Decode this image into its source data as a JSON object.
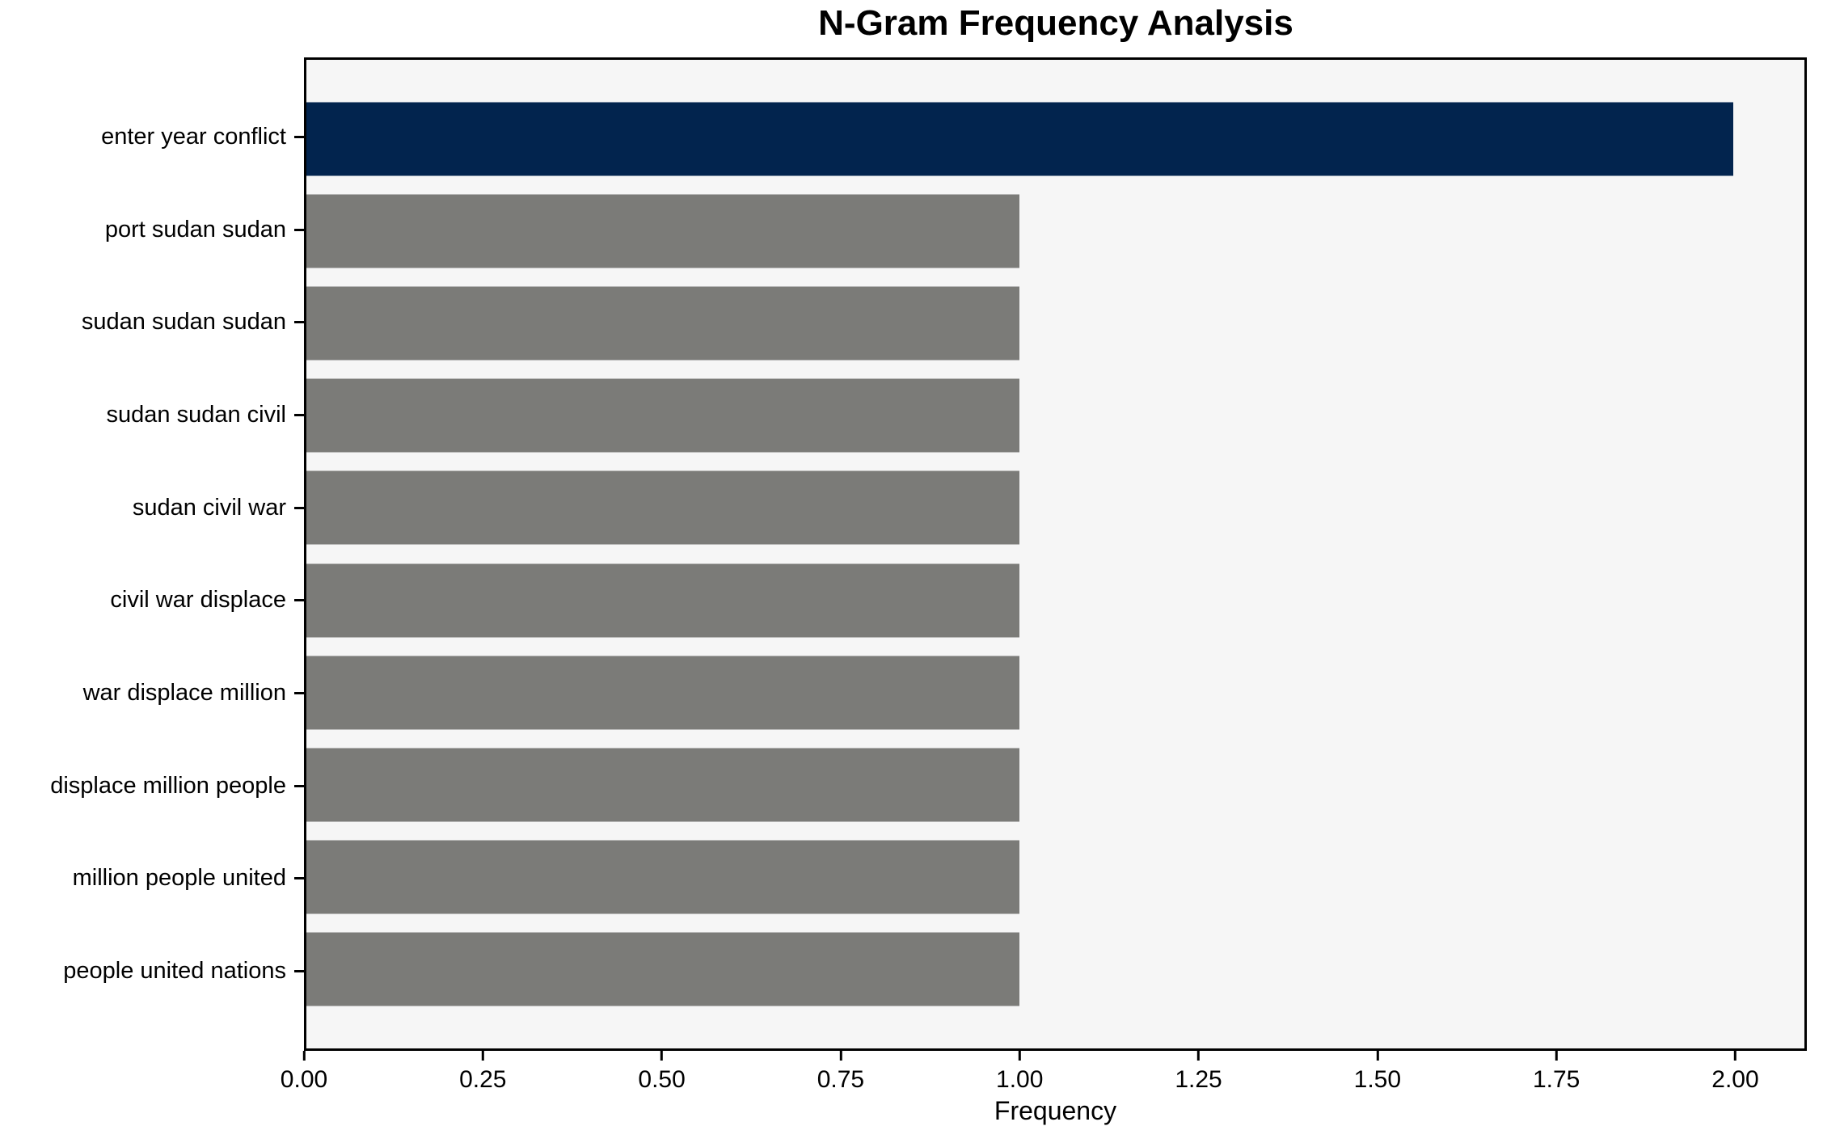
{
  "chart_data": {
    "type": "bar",
    "orientation": "horizontal",
    "title": "N-Gram Frequency Analysis",
    "xlabel": "Frequency",
    "ylabel": "",
    "categories": [
      "enter year conflict",
      "port sudan sudan",
      "sudan sudan sudan",
      "sudan sudan civil",
      "sudan civil war",
      "civil war displace",
      "war displace million",
      "displace million people",
      "million people united",
      "people united nations"
    ],
    "values": [
      2,
      1,
      1,
      1,
      1,
      1,
      1,
      1,
      1,
      1
    ],
    "bar_colors": [
      "#02244e",
      "#7b7b78",
      "#7b7b78",
      "#7b7b78",
      "#7b7b78",
      "#7b7b78",
      "#7b7b78",
      "#7b7b78",
      "#7b7b78",
      "#7b7b78"
    ],
    "xlim": [
      0,
      2.1
    ],
    "xticks": [
      {
        "value": 0.0,
        "label": "0.00"
      },
      {
        "value": 0.25,
        "label": "0.25"
      },
      {
        "value": 0.5,
        "label": "0.50"
      },
      {
        "value": 0.75,
        "label": "0.75"
      },
      {
        "value": 1.0,
        "label": "1.00"
      },
      {
        "value": 1.25,
        "label": "1.25"
      },
      {
        "value": 1.5,
        "label": "1.50"
      },
      {
        "value": 1.75,
        "label": "1.75"
      },
      {
        "value": 2.0,
        "label": "2.00"
      }
    ],
    "grid": false,
    "legend": null,
    "colors": {
      "highlight": "#02244e",
      "default_bar": "#7b7b78",
      "plot_background": "#f6f6f6",
      "figure_background": "#ffffff",
      "spine": "#000000",
      "text": "#000000"
    }
  }
}
